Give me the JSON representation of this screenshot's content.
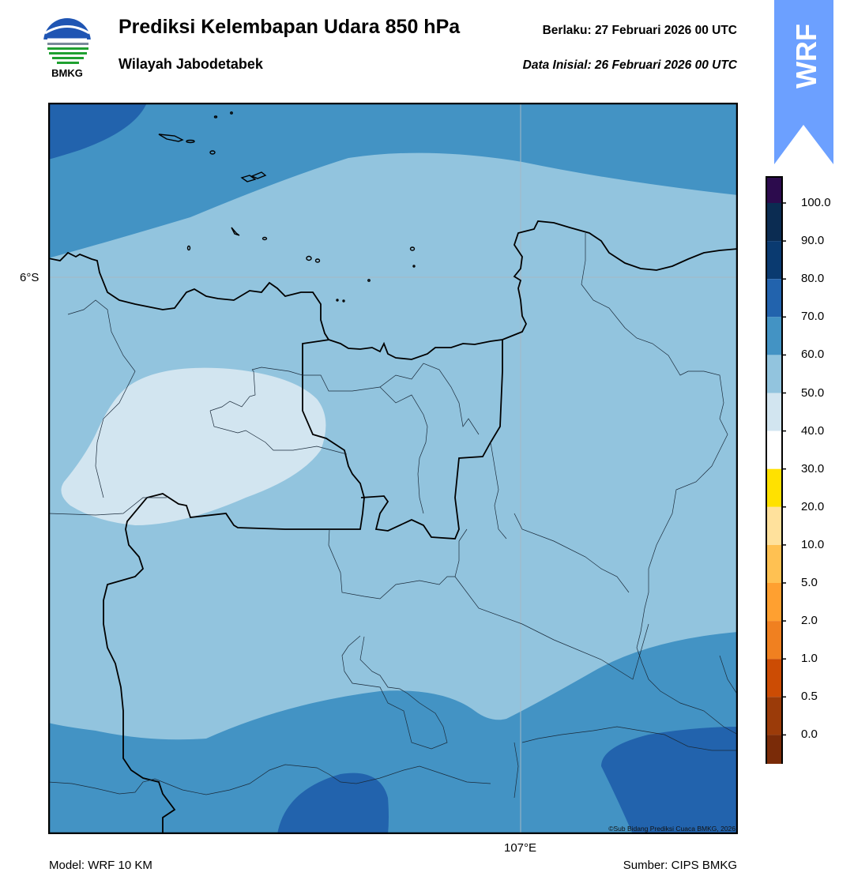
{
  "header": {
    "title": "Prediksi Kelembapan Udara 850 hPa",
    "subtitle": "Wilayah Jabodetabek",
    "valid_label": "Berlaku:  27 Februari 2026 00 UTC",
    "init_label": "Data Inisial:  26 Februari 2026 00 UTC"
  },
  "logo": {
    "text": "BMKG"
  },
  "badge": {
    "text": "WRF",
    "color": "#6ca0ff"
  },
  "map": {
    "lat_label": "6°S",
    "lon_label": "107°E",
    "copyright": "©Sub Bidang Prediksi Cuaca BMKG, 2026"
  },
  "footer": {
    "model": "Model: WRF 10 KM",
    "source": "Sumber: CIPS BMKG"
  },
  "colorbar": {
    "labels": [
      "100.0",
      "90.0",
      "80.0",
      "70.0",
      "60.0",
      "50.0",
      "40.0",
      "30.0",
      "20.0",
      "10.0",
      "5.0",
      "2.0",
      "1.0",
      "0.5",
      "0.0"
    ],
    "colors": [
      "#2c0b4d",
      "#0b2c52",
      "#0a3a70",
      "#2263ad",
      "#4393c4",
      "#92c4de",
      "#d2e5f0",
      "#ffffff",
      "#ffe100",
      "#ffe19c",
      "#ffc152",
      "#ffa030",
      "#f08020",
      "#cc4c04",
      "#9b3b09",
      "#7a2b08",
      "#5a1c0c",
      "#b01218",
      "#e63b2e"
    ]
  },
  "palette": {
    "rh_60_70": "#92c4de",
    "rh_70_80": "#4393c4",
    "rh_80_90": "#2263ad",
    "rh_50_60": "#d2e5f0"
  }
}
